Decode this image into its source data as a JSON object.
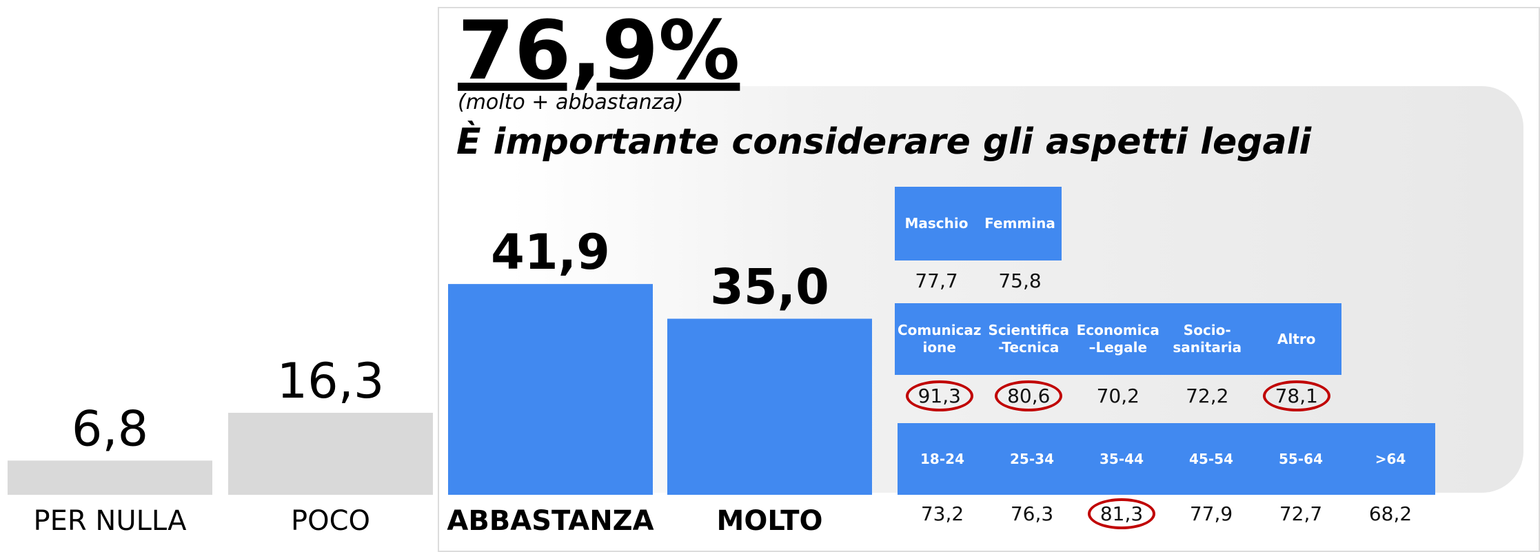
{
  "chart_data": {
    "type": "bar",
    "headline": "76,9%",
    "subtitle": "(molto + abbastanza)",
    "title": "È importante considerare gli aspetti legali",
    "categories": [
      "PER NULLA",
      "POCO",
      "ABBASTANZA",
      "MOLTO"
    ],
    "values": [
      6.8,
      16.3,
      41.9,
      35.0
    ],
    "value_labels": [
      "6,8",
      "16,3",
      "41,9",
      "35,0"
    ],
    "colors": [
      "#d9d9d9",
      "#d9d9d9",
      "#4189f0",
      "#4189f0"
    ],
    "bold": [
      false,
      false,
      true,
      true
    ]
  },
  "tables": [
    {
      "headers": [
        "Maschio",
        "Femmina"
      ],
      "values": [
        "77,7",
        "75,8"
      ],
      "circled": [
        false,
        false
      ]
    },
    {
      "headers": [
        "Comunicazione",
        "Scientifica-Tecnica",
        "Economica –Legale",
        "Socio-sanitaria",
        "Altro"
      ],
      "values": [
        "91,3",
        "80,6",
        "70,2",
        "72,2",
        "78,1"
      ],
      "circled": [
        true,
        true,
        false,
        false,
        true
      ]
    },
    {
      "headers": [
        "18-24",
        "25-34",
        "35-44",
        "45-54",
        "55-64",
        ">64"
      ],
      "values": [
        "73,2",
        "76,3",
        "81,3",
        "77,9",
        "72,7",
        "68,2"
      ],
      "circled": [
        false,
        false,
        true,
        false,
        false,
        false
      ]
    }
  ]
}
